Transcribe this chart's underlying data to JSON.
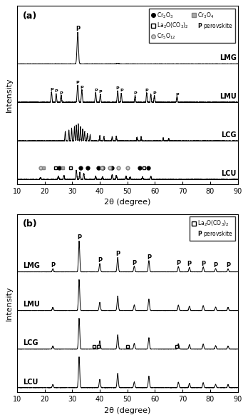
{
  "panel_a_label": "(a)",
  "panel_b_label": "(b)",
  "xlabel": "2θ (degree)",
  "ylabel": "Intensity",
  "xlim": [
    10,
    90
  ],
  "xticks": [
    10,
    20,
    30,
    40,
    50,
    60,
    70,
    80,
    90
  ],
  "sample_labels_a": [
    "LMG",
    "LMU",
    "LCG",
    "LCU"
  ],
  "sample_labels_b": [
    "LMG",
    "LMU",
    "LCG",
    "LCU"
  ],
  "offsets_a": [
    3.0,
    2.0,
    1.0,
    0.0
  ],
  "offsets_b": [
    3.0,
    2.0,
    1.0,
    0.0
  ],
  "background_color": "#ffffff",
  "line_color": "#000000",
  "legend_a_col1": [
    [
      "filled_circle",
      "Cr$_2$O$_3$"
    ],
    [
      "open_square",
      "La$_2$O(CO$_3$)$_2$"
    ]
  ],
  "legend_a_col2": [
    [
      "gray_circle",
      "Cr$_5$O$_{12}$"
    ],
    [
      "gray_square",
      "Cr$_3$O$_4$"
    ],
    [
      "P_bold",
      "perovskite"
    ]
  ],
  "legend_b": [
    [
      "open_square",
      "La$_2$O(CO$_3$)$_2$"
    ],
    [
      "P_bold",
      "perovskite"
    ]
  ]
}
